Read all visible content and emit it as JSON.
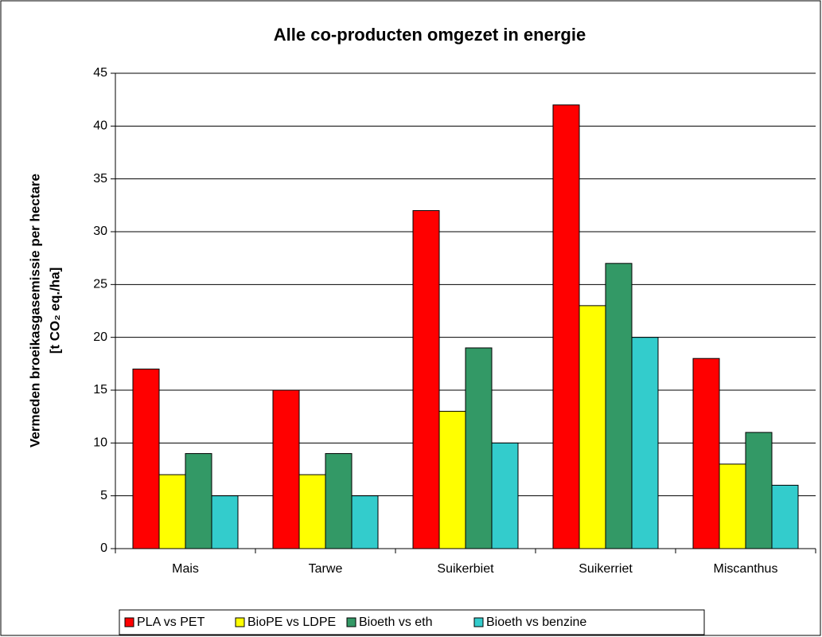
{
  "chart_data": {
    "type": "bar",
    "title": "Alle co-producten omgezet in energie",
    "y_label": [
      "Vermeden broeikasgasemissie per hectare",
      "[t CO₂ eq./ha]"
    ],
    "categories": [
      "Mais",
      "Tarwe",
      "Suikerbiet",
      "Suikerriet",
      "Miscanthus"
    ],
    "series": [
      {
        "name": "PLA vs PET",
        "color": "#ff0000",
        "values": [
          17,
          15,
          32,
          42,
          18
        ]
      },
      {
        "name": "BioPE vs LDPE",
        "color": "#ffff00",
        "values": [
          7,
          7,
          13,
          23,
          8
        ]
      },
      {
        "name": "Bioeth vs eth",
        "color": "#339966",
        "values": [
          9,
          9,
          19,
          27,
          11
        ]
      },
      {
        "name": "Bioeth vs benzine",
        "color": "#33cccc",
        "values": [
          5,
          5,
          10,
          20,
          6
        ]
      }
    ],
    "ylim": [
      0,
      45
    ],
    "yticks": [
      0,
      5,
      10,
      15,
      20,
      25,
      30,
      35,
      40,
      45
    ],
    "grid": true,
    "legend": "bottom"
  }
}
